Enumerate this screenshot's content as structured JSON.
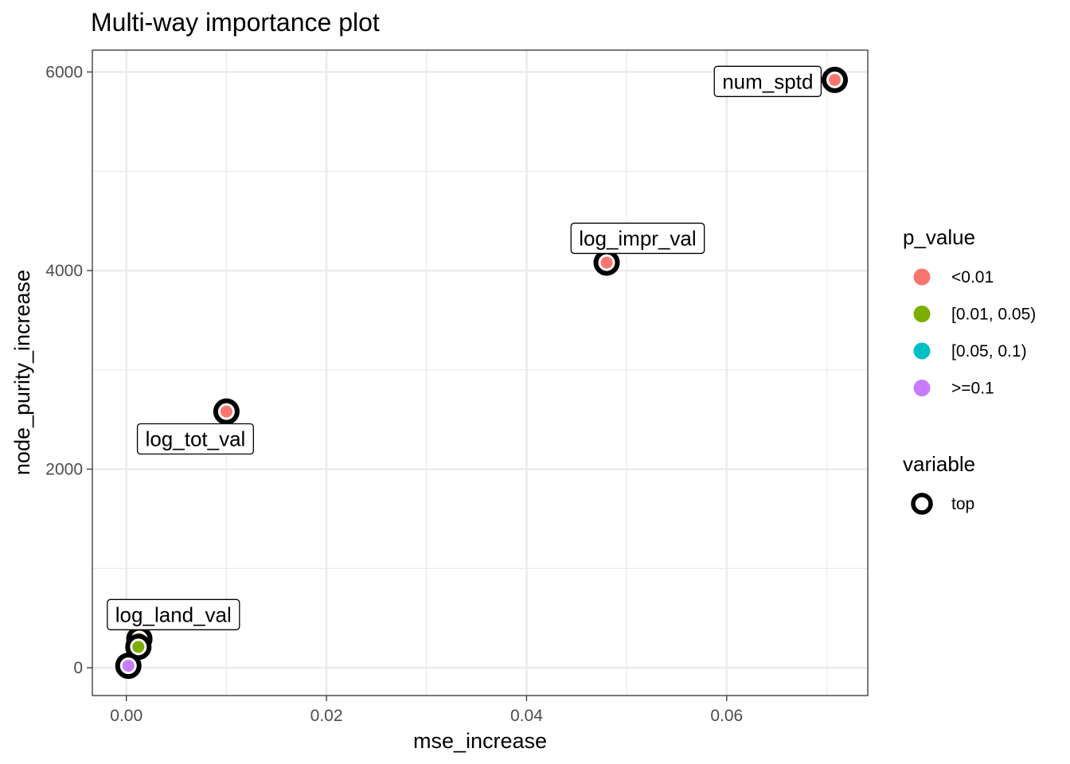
{
  "chart_data": {
    "type": "scatter",
    "title": "Multi-way importance plot",
    "xlabel": "mse_increase",
    "ylabel": "node_purity_increase",
    "xlim": [
      -0.0034,
      0.0741
    ],
    "ylim": [
      -280,
      6220
    ],
    "x_ticks": [
      0.0,
      0.02,
      0.04,
      0.06
    ],
    "x_tick_labels": [
      "0.00",
      "0.02",
      "0.04",
      "0.06"
    ],
    "x_minor_ticks": [
      0.01,
      0.03,
      0.05,
      0.07
    ],
    "y_ticks": [
      0,
      2000,
      4000,
      6000
    ],
    "y_tick_labels": [
      "0",
      "2000",
      "4000",
      "6000"
    ],
    "y_minor_ticks": [
      1000,
      3000,
      5000
    ],
    "grid": true,
    "legend": {
      "placement": "right",
      "p_value": {
        "title": "p_value",
        "items": [
          {
            "label": "<0.01",
            "color": "#F8766D"
          },
          {
            "label": "[0.01, 0.05)",
            "color": "#7CAE00"
          },
          {
            "label": "[0.05, 0.1)",
            "color": "#00BFC4"
          },
          {
            "label": ">=0.1",
            "color": "#C77CFF"
          }
        ]
      },
      "variable": {
        "title": "variable",
        "items": [
          {
            "label": "top"
          }
        ]
      }
    },
    "points": [
      {
        "label": "num_sptd",
        "x": 0.0708,
        "y": 5920,
        "p_value": "<0.01",
        "variable": "top"
      },
      {
        "label": "log_impr_val",
        "x": 0.048,
        "y": 4080,
        "p_value": "<0.01",
        "variable": "top"
      },
      {
        "label": "log_tot_val",
        "x": 0.01,
        "y": 2580,
        "p_value": "<0.01",
        "variable": "top"
      },
      {
        "label": "log_land_val",
        "x": 0.0013,
        "y": 290,
        "p_value": "<0.01",
        "variable": "top"
      },
      {
        "label": "",
        "x": 0.0012,
        "y": 210,
        "p_value": "[0.01, 0.05)",
        "variable": "top"
      },
      {
        "label": "",
        "x": 0.0002,
        "y": 20,
        "p_value": ">=0.1",
        "variable": "top"
      }
    ],
    "labels": [
      {
        "text": "num_sptd",
        "x": 0.0641,
        "y": 5905
      },
      {
        "text": "log_impr_val",
        "x": 0.0511,
        "y": 4325
      },
      {
        "text": "log_tot_val",
        "x": 0.0069,
        "y": 2305
      },
      {
        "text": "log_land_val",
        "x": 0.0047,
        "y": 535
      }
    ]
  }
}
